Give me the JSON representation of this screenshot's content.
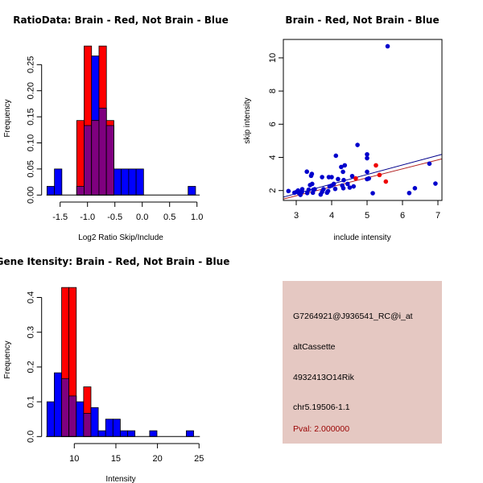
{
  "chart_data": [
    {
      "id": "ratio_hist",
      "type": "bar",
      "subtype": "overlaid-histogram",
      "title": "RatioData: Brain - Red, Not Brain - Blue",
      "xlabel": "Log2 Ratio Skip/Include",
      "ylabel": "Frequency",
      "xlim": [
        -1.75,
        1.05
      ],
      "ylim": [
        0,
        0.285
      ],
      "xticks": [
        -1.5,
        -1.0,
        -0.5,
        0.0,
        0.5,
        1.0
      ],
      "xtick_labels": [
        "-1.5",
        "-1.0",
        "-0.5",
        "0.0",
        "0.5",
        "1.0"
      ],
      "yticks": [
        0,
        0.05,
        0.1,
        0.15,
        0.2,
        0.25
      ],
      "ytick_labels": [
        "0.00",
        "0.05",
        "0.10",
        "0.15",
        "0.20",
        "0.25"
      ],
      "bin_start": -1.74,
      "bin_width": 0.1357,
      "series": [
        {
          "name": "Not Brain",
          "color": "#0000ff",
          "values": [
            0.0167,
            0.05,
            0,
            0,
            0.0167,
            0.1333,
            0.2667,
            0.1667,
            0.1333,
            0.05,
            0.05,
            0.05,
            0.05,
            0,
            0,
            0,
            0,
            0,
            0,
            0.0167
          ]
        },
        {
          "name": "Brain",
          "color": "#ff0000",
          "values": [
            0,
            0,
            0,
            0,
            0.1429,
            0.2857,
            0.1429,
            0.2857,
            0.1429,
            0,
            0,
            0,
            0,
            0,
            0,
            0,
            0,
            0,
            0,
            0
          ]
        }
      ],
      "overlap_color": "#7f007f",
      "grid": false,
      "legend": "none"
    },
    {
      "id": "intensity_scatter",
      "type": "scatter",
      "title": "Brain - Red, Not Brain - Blue",
      "xlabel": "include intensity",
      "ylabel": "skip intensity",
      "xlim": [
        2.62,
        7.1
      ],
      "ylim": [
        1.3,
        11.0
      ],
      "xticks": [
        3,
        4,
        5,
        6,
        7
      ],
      "xtick_labels": [
        "3",
        "4",
        "5",
        "6",
        "7"
      ],
      "yticks": [
        2,
        4,
        6,
        8,
        10
      ],
      "ytick_labels": [
        "2",
        "4",
        "6",
        "8",
        "10"
      ],
      "series": [
        {
          "name": "Not Brain",
          "color": "#0000cc",
          "x": [
            2.78,
            2.95,
            3.01,
            3.05,
            3.08,
            3.12,
            3.16,
            3.17,
            3.3,
            3.31,
            3.35,
            3.39,
            3.42,
            3.44,
            3.45,
            3.47,
            3.48,
            3.52,
            3.69,
            3.73,
            3.73,
            3.77,
            3.87,
            3.9,
            3.92,
            3.94,
            4.0,
            4.0,
            4.06,
            4.1,
            4.12,
            4.18,
            4.27,
            4.3,
            4.32,
            4.33,
            4.34,
            4.37,
            4.45,
            4.51,
            4.58,
            4.62,
            4.73,
            5.0,
            5.0,
            5.0,
            5.0,
            5.05,
            5.16,
            5.58,
            6.19,
            6.35,
            6.76,
            6.93
          ],
          "y": [
            1.97,
            1.87,
            1.92,
            2.0,
            1.84,
            1.74,
            1.92,
            2.08,
            3.14,
            1.85,
            2.05,
            2.33,
            2.89,
            3.0,
            2.4,
            1.87,
            2.05,
            2.08,
            1.76,
            2.81,
            1.92,
            2.08,
            1.87,
            1.97,
            2.81,
            2.25,
            2.81,
            2.3,
            2.4,
            2.1,
            4.1,
            2.69,
            3.42,
            2.3,
            3.13,
            2.14,
            2.63,
            3.52,
            2.4,
            2.18,
            2.87,
            2.25,
            4.75,
            4.18,
            3.95,
            3.13,
            2.69,
            2.73,
            1.84,
            10.7,
            1.85,
            2.14,
            3.62,
            2.42
          ]
        },
        {
          "name": "Brain",
          "color": "#ee0000",
          "x": [
            4.68,
            5.25,
            5.35,
            5.53
          ],
          "y": [
            2.73,
            3.52,
            2.94,
            2.54
          ]
        }
      ],
      "fit_lines": [
        {
          "name": "Not Brain fit",
          "color": "#00008b",
          "slope": 0.575,
          "intercept": 0.1
        },
        {
          "name": "Brain fit",
          "color": "#b22222",
          "slope": 0.541,
          "intercept": 0.07
        }
      ],
      "grid": false,
      "legend": "none"
    },
    {
      "id": "gene_intensity_hist",
      "type": "bar",
      "subtype": "overlaid-histogram",
      "title": "Gene Itensity: Brain - Red, Not Brain - Blue",
      "xlabel": "Intensity",
      "ylabel": "Frequency",
      "xlim": [
        6.6,
        25.1
      ],
      "ylim": [
        0,
        0.43
      ],
      "xticks": [
        10,
        15,
        20,
        25
      ],
      "xtick_labels": [
        "10",
        "15",
        "20",
        "25"
      ],
      "yticks": [
        0,
        0.1,
        0.2,
        0.3,
        0.4
      ],
      "ytick_labels": [
        "0.0",
        "0.1",
        "0.2",
        "0.3",
        "0.4"
      ],
      "bin_start": 6.71,
      "bin_width": 0.882,
      "series": [
        {
          "name": "Not Brain",
          "color": "#0000ff",
          "values": [
            0.1,
            0.1833,
            0.1667,
            0.1167,
            0.1,
            0.0667,
            0.0833,
            0.0167,
            0.05,
            0.05,
            0.0167,
            0.0167,
            0,
            0,
            0.0167,
            0,
            0,
            0,
            0,
            0.0167
          ]
        },
        {
          "name": "Brain",
          "color": "#ff0000",
          "values": [
            0,
            0,
            0.4286,
            0.4286,
            0,
            0.1429,
            0,
            0,
            0,
            0,
            0,
            0,
            0,
            0,
            0,
            0,
            0,
            0,
            0,
            0
          ]
        }
      ],
      "overlap_color": "#7f007f",
      "grid": false,
      "legend": "none"
    }
  ],
  "info_panel": {
    "background": "#e5c8c2",
    "probe_id": "G7264921@J936541_RC@i_at",
    "event_type": "altCassette",
    "gene_name": "4932413O14Rik",
    "location": "chr5.19506-1.1",
    "pval_label": "Pval: 2.000000",
    "pval_color": "#990000"
  }
}
